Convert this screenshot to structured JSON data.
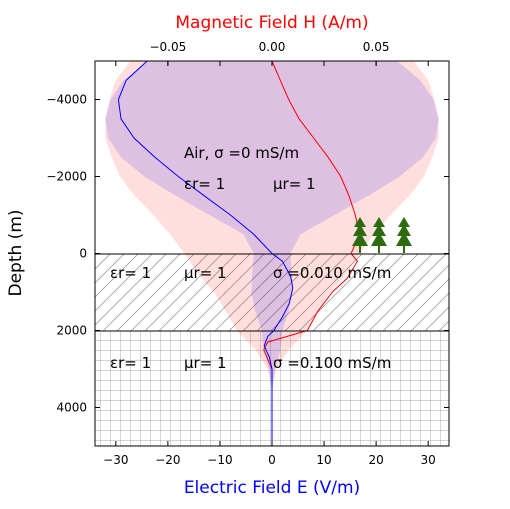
{
  "chart_data": {
    "type": "line",
    "xlabel_bottom": "Electric Field E (V/m)",
    "xlabel_top": "Magnetic Field H (A/m)",
    "ylabel": "Depth (m)",
    "x_bottom_range": [
      -34,
      34
    ],
    "x_top_range": [
      -0.085,
      0.085
    ],
    "y_range": [
      -5000,
      5000
    ],
    "y_inverted": true,
    "x_bottom_ticks": [
      "−30",
      "−20",
      "−10",
      "0",
      "10",
      "20",
      "30"
    ],
    "x_bottom_tick_values": [
      -30,
      -20,
      -10,
      0,
      10,
      20,
      30
    ],
    "x_top_ticks": [
      "−0.05",
      "0.00",
      "0.05"
    ],
    "x_top_tick_values": [
      -0.05,
      0.0,
      0.05
    ],
    "y_ticks": [
      "−4000",
      "−2000",
      "0",
      "2000",
      "4000"
    ],
    "y_tick_values": [
      -4000,
      -2000,
      0,
      2000,
      4000
    ],
    "boundaries_depth": [
      0,
      2000
    ],
    "colors": {
      "electric": "#0000ff",
      "magnetic": "#ff0000",
      "tree": "#2e6b0f"
    },
    "layers": [
      {
        "name": "air",
        "sigma_text": "Air, σ =0 mS/m",
        "eps_text": "εr= 1",
        "mu_text": "μr= 1"
      },
      {
        "name": "layer1",
        "sigma_text": "σ =0.010 mS/m",
        "eps_text": "εr= 1",
        "mu_text": "μr= 1"
      },
      {
        "name": "layer2",
        "sigma_text": "σ =0.100 mS/m",
        "eps_text": "εr= 1",
        "mu_text": "μr= 1"
      }
    ],
    "series": [
      {
        "field": "E",
        "axis": "bottom",
        "points": [
          [
            -24,
            -5000
          ],
          [
            -28,
            -4500
          ],
          [
            -29.5,
            -4000
          ],
          [
            -29,
            -3500
          ],
          [
            -26.5,
            -3000
          ],
          [
            -22.5,
            -2500
          ],
          [
            -18,
            -2000
          ],
          [
            -13,
            -1500
          ],
          [
            -8,
            -1000
          ],
          [
            -3.5,
            -500
          ],
          [
            0,
            0
          ],
          [
            2,
            200
          ],
          [
            3.6,
            600
          ],
          [
            4,
            900
          ],
          [
            3.3,
            1300
          ],
          [
            2,
            1650
          ],
          [
            0.8,
            1900
          ],
          [
            0.4,
            2000
          ],
          [
            -0.8,
            2150
          ],
          [
            -1.5,
            2400
          ],
          [
            -0.5,
            2700
          ],
          [
            0,
            3000
          ],
          [
            0,
            4000
          ],
          [
            0,
            5000
          ]
        ],
        "envelope_half_width": [
          [
            -5000,
            24
          ],
          [
            -4500,
            28.5
          ],
          [
            -4000,
            31
          ],
          [
            -3500,
            32
          ],
          [
            -3000,
            31.5
          ],
          [
            -2500,
            29
          ],
          [
            -2000,
            24.5
          ],
          [
            -1500,
            18.5
          ],
          [
            -1000,
            12
          ],
          [
            -500,
            5.5
          ],
          [
            0,
            3.5
          ],
          [
            500,
            3.8
          ],
          [
            1000,
            4
          ],
          [
            1500,
            3.2
          ],
          [
            2000,
            2
          ],
          [
            2500,
            1.6
          ],
          [
            3000,
            0.6
          ],
          [
            3500,
            0.1
          ],
          [
            5000,
            0
          ]
        ]
      },
      {
        "field": "H",
        "axis": "top",
        "points": [
          [
            0.0,
            -5000
          ],
          [
            0.004,
            -4500
          ],
          [
            0.008,
            -4000
          ],
          [
            0.013,
            -3500
          ],
          [
            0.02,
            -3000
          ],
          [
            0.027,
            -2500
          ],
          [
            0.033,
            -2000
          ],
          [
            0.037,
            -1500
          ],
          [
            0.04,
            -1000
          ],
          [
            0.042,
            -500
          ],
          [
            0.038,
            0
          ],
          [
            0.041,
            200
          ],
          [
            0.036,
            650
          ],
          [
            0.029,
            1000
          ],
          [
            0.022,
            1500
          ],
          [
            0.017,
            2000
          ],
          [
            -0.002,
            2300
          ],
          [
            -0.004,
            2500
          ],
          [
            0.0,
            3000
          ],
          [
            0.0,
            4000
          ],
          [
            0.0,
            5000
          ]
        ],
        "envelope_half_width": [
          [
            -5000,
            0.068
          ],
          [
            -4500,
            0.075
          ],
          [
            -4000,
            0.078
          ],
          [
            -3500,
            0.08
          ],
          [
            -3000,
            0.08
          ],
          [
            -2500,
            0.077
          ],
          [
            -2000,
            0.073
          ],
          [
            -1500,
            0.066
          ],
          [
            -1000,
            0.057
          ],
          [
            -500,
            0.049
          ],
          [
            0,
            0.042
          ],
          [
            500,
            0.036
          ],
          [
            1000,
            0.028
          ],
          [
            1500,
            0.022
          ],
          [
            2000,
            0.017
          ],
          [
            2500,
            0.008
          ],
          [
            3000,
            0.002
          ],
          [
            3500,
            0.0
          ],
          [
            5000,
            0
          ]
        ]
      }
    ],
    "grid": false
  }
}
